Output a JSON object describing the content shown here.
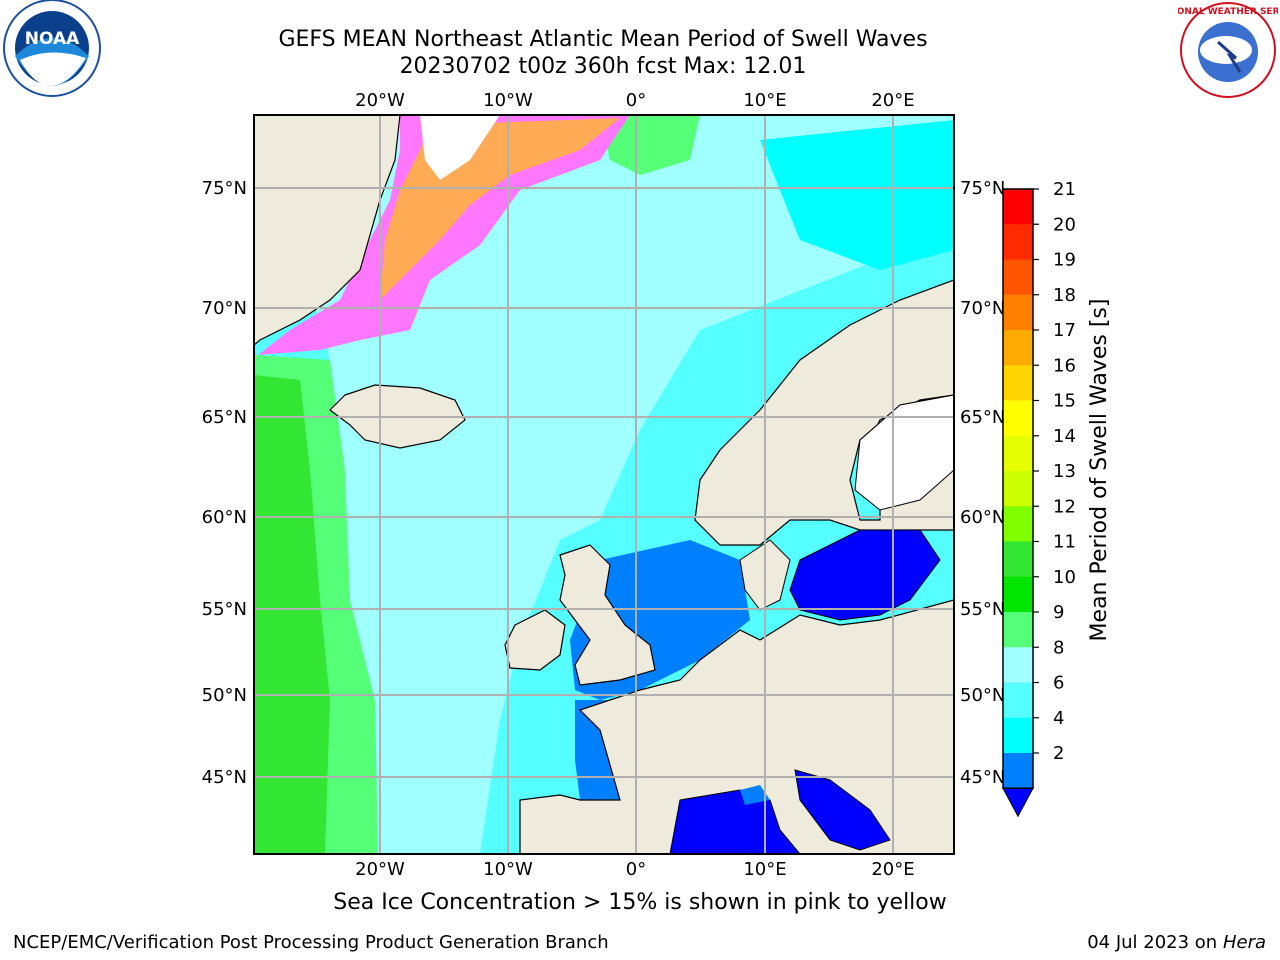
{
  "title": {
    "line1": "GEFS MEAN Northeast Atlantic Mean Period of Swell Waves",
    "line2": "20230702 t00z 360h fcst   Max: 12.01"
  },
  "map": {
    "lon_labels": [
      "20°W",
      "10°W",
      "0°",
      "10°E",
      "20°E"
    ],
    "lat_labels": [
      "75°N",
      "70°N",
      "65°N",
      "60°N",
      "55°N",
      "50°N",
      "45°N"
    ],
    "land_color": "#eeeadc",
    "grid_color": "#b0b0b0"
  },
  "colorbar": {
    "label": "Mean Period of Swell Waves [s]",
    "ticks": [
      "21",
      "20",
      "19",
      "18",
      "17",
      "16",
      "15",
      "14",
      "13",
      "12",
      "11",
      "10",
      "9",
      "8",
      "6",
      "4",
      "2"
    ],
    "colors": [
      "#ff0000",
      "#ff2a00",
      "#ff5500",
      "#ff8000",
      "#ffaa00",
      "#ffd400",
      "#ffff00",
      "#e6ff00",
      "#ccff00",
      "#7fff00",
      "#33e633",
      "#00e600",
      "#55ff77",
      "#a0ffff",
      "#55ffff",
      "#00ffff",
      "#0080ff"
    ],
    "extend_color": "#0000ff"
  },
  "subtitle": "Sea Ice Concentration > 15% is shown in pink to yellow",
  "footer": {
    "left": "NCEP/EMC/Verification Post Processing Product Generation Branch",
    "right_prefix": "04 Jul 2023 on ",
    "right_host": "Hera"
  },
  "logos": {
    "noaa_text": "NOAA",
    "nws_text": "NATIONAL WEATHER SERVICE"
  }
}
